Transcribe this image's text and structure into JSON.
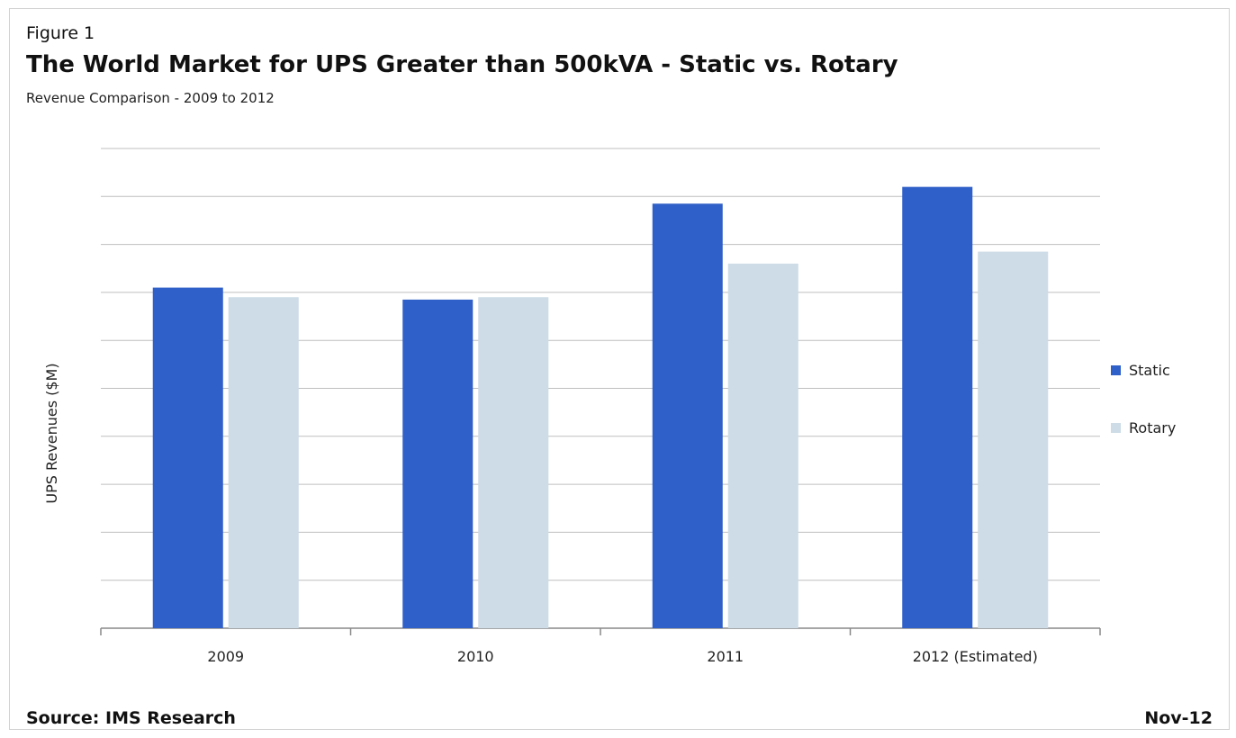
{
  "header": {
    "figure_label": "Figure 1",
    "title": "The World Market for UPS Greater than 500kVA - Static vs. Rotary",
    "subtitle": "Revenue Comparison - 2009 to 2012"
  },
  "footer": {
    "source": "Source: IMS Research",
    "date": "Nov-12"
  },
  "colors": {
    "static": "#2f5fc8",
    "rotary": "#cddce6",
    "grid": "#bfbfbf",
    "axis": "#888888"
  },
  "chart_data": {
    "type": "bar",
    "title": "The World Market for UPS Greater than 500kVA - Static vs. Rotary",
    "subtitle": "Revenue Comparison - 2009 to 2012",
    "xlabel": "",
    "ylabel": "UPS Revenues ($M)",
    "categories": [
      "2009",
      "2010",
      "2011",
      "2012 (Estimated)"
    ],
    "series": [
      {
        "name": "Static",
        "values": [
          7.1,
          6.85,
          8.85,
          9.2
        ]
      },
      {
        "name": "Rotary",
        "values": [
          6.9,
          6.9,
          7.6,
          7.85
        ]
      }
    ],
    "ylim": [
      0,
      10
    ],
    "ytick_count": 10,
    "y_tick_labels_shown": false,
    "grid": true,
    "legend": "right"
  }
}
